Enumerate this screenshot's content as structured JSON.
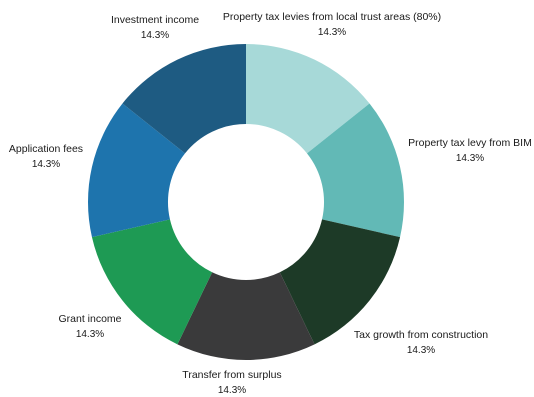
{
  "chart_data": {
    "type": "pie",
    "donut": true,
    "title": "",
    "legend": "none",
    "slices": [
      {
        "label": "Property tax levies from local trust areas (80%)",
        "value": 14.3,
        "value_label": "14.3%",
        "color": "#a7d9d8"
      },
      {
        "label": "Property tax levy from BIM",
        "value": 14.3,
        "value_label": "14.3%",
        "color": "#62b9b6"
      },
      {
        "label": "Tax growth from construction",
        "value": 14.3,
        "value_label": "14.3%",
        "color": "#1d3a27"
      },
      {
        "label": "Transfer from surplus",
        "value": 14.3,
        "value_label": "14.3%",
        "color": "#3a3a3b"
      },
      {
        "label": "Grant income",
        "value": 14.3,
        "value_label": "14.3%",
        "color": "#1e9a54"
      },
      {
        "label": "Application fees",
        "value": 14.3,
        "value_label": "14.3%",
        "color": "#1e74ad"
      },
      {
        "label": "Investment income",
        "value": 14.3,
        "value_label": "14.3%",
        "color": "#1e5b82"
      }
    ]
  }
}
